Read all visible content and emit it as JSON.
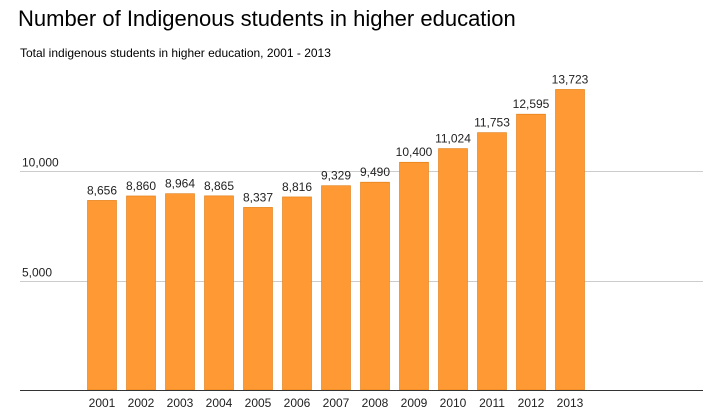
{
  "chart_data": {
    "type": "bar",
    "title": "Number of Indigenous students in higher education",
    "subtitle": "Total indigenous students in higher education, 2001 - 2013",
    "xlabel": "",
    "ylabel": "",
    "categories": [
      "2001",
      "2002",
      "2003",
      "2004",
      "2005",
      "2006",
      "2007",
      "2008",
      "2009",
      "2010",
      "2011",
      "2012",
      "2013"
    ],
    "values": [
      8656,
      8860,
      8964,
      8865,
      8337,
      8816,
      9329,
      9490,
      10400,
      11024,
      11753,
      12595,
      13723
    ],
    "value_labels": [
      "8,656",
      "8,860",
      "8,964",
      "8,865",
      "8,337",
      "8,816",
      "9,329",
      "9,490",
      "10,400",
      "11,024",
      "11,753",
      "12,595",
      "13,723"
    ],
    "yticks": [
      5000,
      10000
    ],
    "ytick_labels": [
      "5,000",
      "10,000"
    ],
    "ylim": [
      0,
      14500
    ],
    "grid": true,
    "legend": "none",
    "bar_color": "#ff9933",
    "bar_edge_color": "#e07a10",
    "grid_color": "#cccccc",
    "axis_color": "#333333"
  }
}
